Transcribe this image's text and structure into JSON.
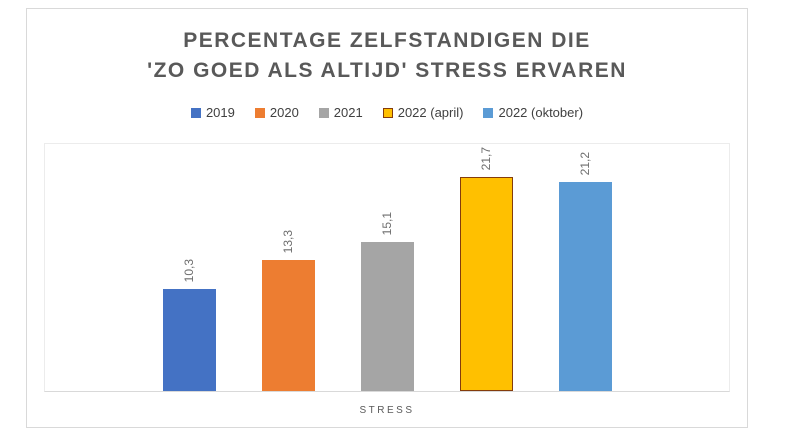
{
  "figure": {
    "title_line1": "PERCENTAGE ZELFSTANDIGEN DIE",
    "title_line2": "'ZO GOED ALS ALTIJD' STRESS ERVAREN"
  },
  "chart_data": {
    "type": "bar",
    "title": "PERCENTAGE ZELFSTANDIGEN DIE 'ZO GOED ALS ALTIJD' STRESS ERVAREN",
    "categories": [
      "STRESS"
    ],
    "series": [
      {
        "name": "2019",
        "values": [
          10.3
        ],
        "label": "10,3",
        "color": "#4472c4"
      },
      {
        "name": "2020",
        "values": [
          13.3
        ],
        "label": "13,3",
        "color": "#ed7d31"
      },
      {
        "name": "2021",
        "values": [
          15.1
        ],
        "label": "15,1",
        "color": "#a5a5a5"
      },
      {
        "name": "2022 (april)",
        "values": [
          21.7
        ],
        "label": "21,7",
        "color": "#ffc000",
        "border_color": "#843c0c"
      },
      {
        "name": "2022 (oktober)",
        "values": [
          21.2
        ],
        "label": "21,2",
        "color": "#5b9bd5"
      }
    ],
    "xlabel": "STRESS",
    "ylabel": "",
    "ylim": [
      0,
      25
    ],
    "gridlines": false,
    "legend_position": "top",
    "data_labels_rotated": true,
    "decimal_separator": ","
  }
}
